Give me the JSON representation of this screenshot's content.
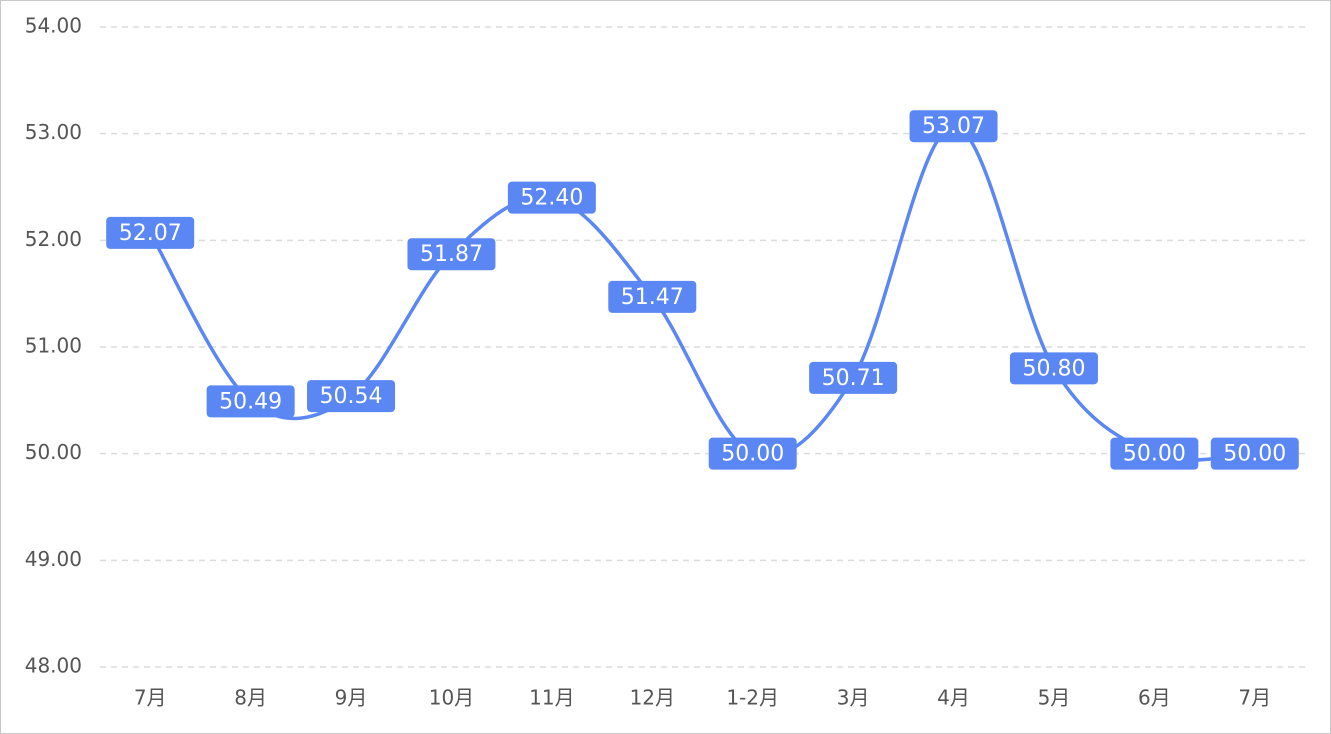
{
  "chart_data": {
    "type": "line",
    "categories": [
      "7月",
      "8月",
      "9月",
      "10月",
      "11月",
      "12月",
      "1-2月",
      "3月",
      "4月",
      "5月",
      "6月",
      "7月"
    ],
    "values": [
      52.07,
      50.49,
      50.54,
      51.87,
      52.4,
      51.47,
      50.0,
      50.71,
      53.07,
      50.8,
      50.0,
      50.0
    ],
    "value_labels": [
      "52.07",
      "50.49",
      "50.54",
      "51.87",
      "52.40",
      "51.47",
      "50.00",
      "50.71",
      "53.07",
      "50.80",
      "50.00",
      "50.00"
    ],
    "color": "#5b87f4",
    "ylim": [
      48,
      54
    ],
    "yticks": [
      {
        "value": 48,
        "label": "48.00"
      },
      {
        "value": 49,
        "label": "49.00"
      },
      {
        "value": 50,
        "label": "50.00"
      },
      {
        "value": 51,
        "label": "51.00"
      },
      {
        "value": 52,
        "label": "52.00"
      },
      {
        "value": 53,
        "label": "53.00"
      },
      {
        "value": 54,
        "label": "54.00"
      }
    ],
    "grid": true,
    "smooth": true
  }
}
